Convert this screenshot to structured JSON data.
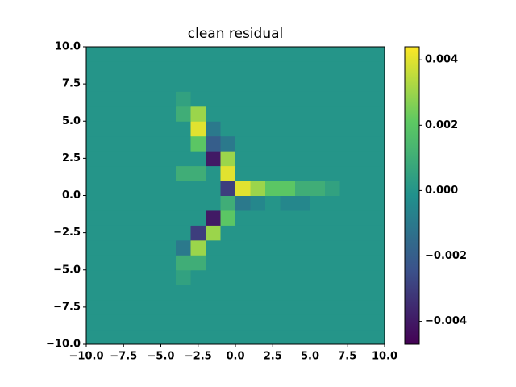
{
  "chart_data": {
    "type": "heatmap",
    "title": "clean residual",
    "colormap": "viridis",
    "x": [
      -10,
      -9,
      -8,
      -7,
      -6,
      -5,
      -4,
      -3,
      -2,
      -1,
      0,
      1,
      2,
      3,
      4,
      5,
      6,
      7,
      8,
      9,
      10
    ],
    "y": [
      -10,
      -9,
      -8,
      -7,
      -6,
      -5,
      -4,
      -3,
      -2,
      -1,
      0,
      1,
      2,
      3,
      4,
      5,
      6,
      7,
      8,
      9,
      10
    ],
    "values": [
      [
        0,
        0,
        0,
        0,
        0,
        0,
        0,
        0,
        0,
        0,
        0,
        0,
        0,
        0,
        0,
        0,
        0,
        0,
        0,
        0
      ],
      [
        0,
        0,
        0,
        0,
        0,
        0,
        0,
        0,
        0,
        0,
        0,
        0,
        0,
        0,
        0,
        0,
        0,
        0,
        0,
        0
      ],
      [
        0,
        0,
        0,
        0,
        0,
        0,
        0,
        0,
        0,
        0,
        0,
        0,
        0,
        0,
        0,
        0,
        0,
        0,
        0,
        0
      ],
      [
        0,
        0,
        0,
        0,
        0,
        0,
        0,
        0,
        0,
        0,
        0,
        0,
        0,
        0,
        0,
        0,
        0,
        0,
        0,
        0
      ],
      [
        0,
        0,
        0,
        0,
        0,
        0,
        0.0005,
        0,
        0,
        0,
        0,
        0,
        0,
        0,
        0,
        0,
        0,
        0,
        0,
        0
      ],
      [
        0,
        0,
        0,
        0,
        0,
        0,
        0.001,
        0.001,
        0,
        0,
        0,
        0,
        0,
        0,
        0,
        0,
        0,
        0,
        0,
        0
      ],
      [
        0,
        0,
        0,
        0,
        0,
        0,
        -0.001,
        0.003,
        0,
        0,
        0,
        0,
        0,
        0,
        0,
        0,
        0,
        0,
        0,
        0
      ],
      [
        0,
        0,
        0,
        0,
        0,
        0,
        0,
        -0.003,
        0.003,
        0,
        0,
        0,
        0,
        0,
        0,
        0,
        0,
        0,
        0,
        0
      ],
      [
        0,
        0,
        0,
        0,
        0,
        0,
        0,
        0,
        -0.004,
        0.002,
        0,
        0,
        0,
        0,
        0,
        0,
        0,
        0,
        0,
        0
      ],
      [
        0,
        0,
        0,
        0,
        0,
        0,
        0,
        0,
        0,
        0.001,
        -0.001,
        -0.0005,
        0,
        -0.0005,
        -0.0005,
        0,
        0,
        0,
        0,
        0
      ],
      [
        0,
        0,
        0,
        0,
        0,
        0,
        0,
        0,
        0,
        -0.003,
        0.004,
        0.003,
        0.002,
        0.002,
        0.001,
        0.001,
        0.0005,
        0,
        0,
        0
      ],
      [
        0,
        0,
        0,
        0,
        0,
        0,
        0.001,
        0.001,
        0,
        0.004,
        0,
        0,
        0,
        0,
        0,
        0,
        0,
        0,
        0,
        0
      ],
      [
        0,
        0,
        0,
        0,
        0,
        0,
        0,
        0,
        -0.004,
        0.003,
        0,
        0,
        0,
        0,
        0,
        0,
        0,
        0,
        0,
        0
      ],
      [
        0,
        0,
        0,
        0,
        0,
        0,
        0,
        0.002,
        -0.002,
        -0.001,
        0,
        0,
        0,
        0,
        0,
        0,
        0,
        0,
        0,
        0
      ],
      [
        0,
        0,
        0,
        0,
        0,
        0,
        0,
        0.004,
        -0.001,
        0,
        0,
        0,
        0,
        0,
        0,
        0,
        0,
        0,
        0,
        0
      ],
      [
        0,
        0,
        0,
        0,
        0,
        0,
        0.001,
        0.003,
        0,
        0,
        0,
        0,
        0,
        0,
        0,
        0,
        0,
        0,
        0,
        0
      ],
      [
        0,
        0,
        0,
        0,
        0,
        0,
        0.0005,
        0,
        0,
        0,
        0,
        0,
        0,
        0,
        0,
        0,
        0,
        0,
        0,
        0
      ],
      [
        0,
        0,
        0,
        0,
        0,
        0,
        0,
        0,
        0,
        0,
        0,
        0,
        0,
        0,
        0,
        0,
        0,
        0,
        0,
        0
      ],
      [
        0,
        0,
        0,
        0,
        0,
        0,
        0,
        0,
        0,
        0,
        0,
        0,
        0,
        0,
        0,
        0,
        0,
        0,
        0,
        0
      ],
      [
        0,
        0,
        0,
        0,
        0,
        0,
        0,
        0,
        0,
        0,
        0,
        0,
        0,
        0,
        0,
        0,
        0,
        0,
        0,
        0
      ]
    ],
    "xlim": [
      -10,
      10
    ],
    "ylim": [
      -10,
      10
    ],
    "xticks": [
      {
        "value": -10,
        "label": "−10.0"
      },
      {
        "value": -7.5,
        "label": "−7.5"
      },
      {
        "value": -5,
        "label": "−5.0"
      },
      {
        "value": -2.5,
        "label": "−2.5"
      },
      {
        "value": 0,
        "label": "0.0"
      },
      2.5,
      {
        "value": 5,
        "label": "5.0"
      },
      7.5,
      {
        "value": 10,
        "label": "10.0"
      }
    ],
    "yticks": [
      {
        "value": -10,
        "label": "−10.0"
      },
      {
        "value": -7.5,
        "label": "−7.5"
      },
      {
        "value": -5,
        "label": "−5.0"
      },
      {
        "value": -2.5,
        "label": "−2.5"
      },
      {
        "value": 0,
        "label": "0.0"
      },
      2.5,
      {
        "value": 5,
        "label": "5.0"
      },
      7.5,
      {
        "value": 10,
        "label": "10.0"
      }
    ],
    "clim": [
      -0.0047,
      0.0044
    ],
    "cticks": [
      {
        "value": -0.004,
        "label": "−0.004"
      },
      {
        "value": -0.002,
        "label": "−0.002"
      },
      {
        "value": 0,
        "label": "0.000"
      },
      0.002,
      0.004
    ]
  }
}
